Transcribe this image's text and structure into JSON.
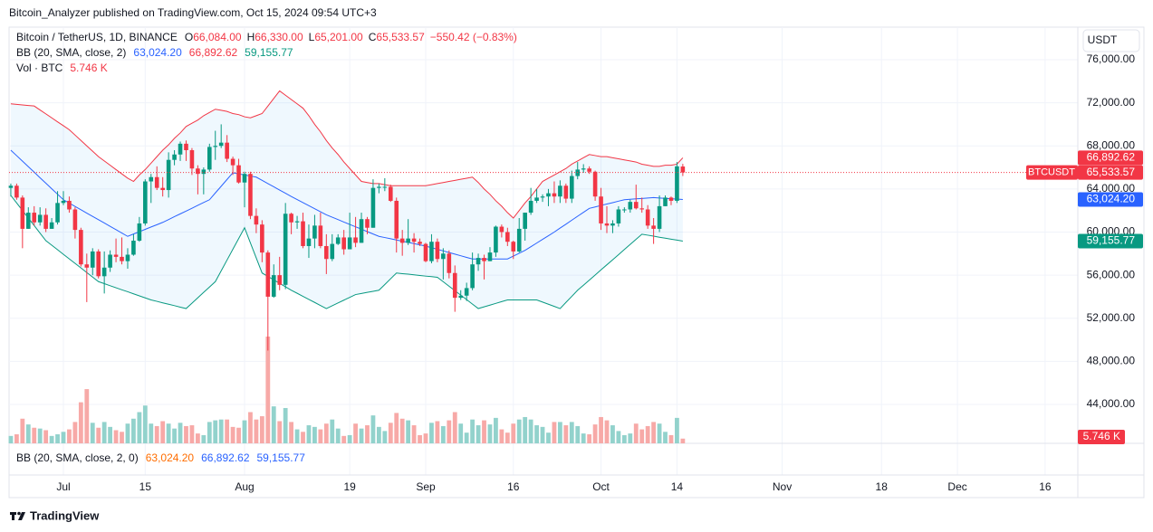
{
  "header": "Bitcoin_Analyzer published on TradingView.com, Oct 15, 2024 09:54 UTC+3",
  "footer": "TradingView",
  "chart_data": {
    "type": "candlestick",
    "title": "Bitcoin / TetherUS, 1D, BINANCE",
    "symbol": "BTCUSDT",
    "currency": "USDT",
    "ohlc_legend": [
      {
        "key": "O",
        "label": "66,084.00"
      },
      {
        "key": "H",
        "label": "66,330.00"
      },
      {
        "key": "L",
        "label": "65,201.00"
      },
      {
        "key": "C",
        "label": "65,533.57"
      }
    ],
    "change_label": "−550.42 (−0.83%)",
    "close_label": "65,533.57",
    "up_color": "#089981",
    "down_color": "#f23645",
    "open": [
      64100,
      64300,
      63200,
      60300,
      61800,
      60900,
      61600,
      60300,
      60900,
      62700,
      62900,
      62100,
      60200,
      57000,
      56700,
      58200,
      55900,
      56700,
      57900,
      57700,
      57300,
      57900,
      59200,
      60800,
      64700,
      65100,
      64100,
      63900,
      66700,
      67200,
      68200,
      67600,
      65900,
      65400,
      65800,
      67900,
      68000,
      68300,
      66800,
      66200,
      64600,
      65400,
      61500,
      60700,
      58100,
      54000,
      56000,
      55100,
      61700,
      60900,
      61000,
      58700,
      59400,
      60600,
      58700,
      57500,
      58900,
      59500,
      58400,
      59500,
      59000,
      61200,
      60400,
      64100,
      64200,
      64200,
      62900,
      59400,
      59000,
      59400,
      59100,
      58900,
      57300,
      59100,
      57500,
      58000,
      56200,
      53900,
      54100,
      54800,
      57000,
      57600,
      57300,
      58100,
      60500,
      60000,
      59100,
      58200,
      60300,
      61800,
      62900,
      63200,
      63300,
      63600,
      63300,
      64300,
      63100,
      65200,
      65800,
      65900,
      65600,
      63300,
      60800,
      60600,
      60800,
      62100,
      62100,
      62800,
      62200,
      62100,
      60600,
      60300,
      62400,
      63200,
      62900,
      66084
    ],
    "high": [
      64500,
      64500,
      63400,
      62300,
      62400,
      62300,
      62200,
      61300,
      63800,
      63800,
      63300,
      62300,
      60400,
      58000,
      58500,
      58400,
      58200,
      58300,
      59400,
      59500,
      58500,
      59800,
      61400,
      64900,
      65400,
      66100,
      65100,
      67400,
      67600,
      68400,
      68500,
      67800,
      66200,
      66000,
      68200,
      69400,
      70000,
      69000,
      67000,
      66800,
      65600,
      65600,
      62200,
      61100,
      58300,
      57000,
      57700,
      62700,
      61800,
      61500,
      61800,
      60700,
      61600,
      61800,
      59800,
      59800,
      59800,
      60200,
      61800,
      61400,
      61800,
      61400,
      64900,
      64500,
      65000,
      64400,
      63200,
      60200,
      61200,
      59900,
      59400,
      59000,
      59800,
      59400,
      58500,
      58300,
      56900,
      54600,
      55300,
      58100,
      58000,
      57900,
      58600,
      60600,
      60700,
      60400,
      59200,
      61300,
      61800,
      64100,
      64000,
      63500,
      64000,
      64700,
      64800,
      64500,
      65700,
      66500,
      66300,
      66100,
      65700,
      64100,
      62400,
      61100,
      62400,
      62300,
      63000,
      64400,
      63200,
      62500,
      61300,
      63400,
      63400,
      63300,
      66500,
      66330
    ],
    "low": [
      63300,
      63000,
      58500,
      60300,
      60600,
      60600,
      60000,
      60300,
      60700,
      62500,
      61800,
      59400,
      56800,
      53500,
      56000,
      55700,
      54300,
      56300,
      57200,
      57000,
      56600,
      57800,
      59100,
      60600,
      62700,
      63900,
      63300,
      63200,
      66200,
      66600,
      66600,
      65300,
      63500,
      63500,
      65600,
      66700,
      67800,
      66500,
      65300,
      64500,
      62300,
      61200,
      59900,
      57200,
      49000,
      53900,
      54600,
      54700,
      59800,
      60300,
      58500,
      57600,
      58500,
      58500,
      56100,
      57300,
      58800,
      57900,
      58400,
      58600,
      59000,
      59800,
      60400,
      63600,
      63800,
      62800,
      58100,
      57800,
      58800,
      58100,
      58700,
      57200,
      57100,
      57200,
      55600,
      55700,
      52600,
      53700,
      53600,
      54600,
      56400,
      55600,
      57300,
      57700,
      59500,
      58700,
      57500,
      58100,
      59200,
      61600,
      62700,
      62800,
      62400,
      62700,
      62700,
      62700,
      62700,
      64900,
      65500,
      65400,
      62900,
      60200,
      59900,
      59900,
      60500,
      61800,
      61800,
      62100,
      61800,
      60300,
      58900,
      60000,
      62400,
      62500,
      62700,
      65201
    ],
    "close": [
      64300,
      63200,
      60300,
      61800,
      60900,
      61600,
      60300,
      60900,
      62700,
      62900,
      62100,
      60200,
      57000,
      56700,
      58200,
      55900,
      56700,
      57900,
      57700,
      57300,
      57900,
      59200,
      60800,
      64700,
      65100,
      64100,
      63900,
      66700,
      67200,
      68200,
      67600,
      65900,
      65400,
      65800,
      67900,
      68000,
      68300,
      66800,
      66200,
      64600,
      65400,
      61500,
      60700,
      58100,
      54000,
      56000,
      55100,
      61700,
      60900,
      61000,
      58700,
      59400,
      60600,
      58700,
      57500,
      58900,
      59500,
      58400,
      59500,
      59000,
      61200,
      60400,
      64100,
      64200,
      64200,
      62900,
      59400,
      59000,
      59400,
      59100,
      58900,
      57300,
      59100,
      57500,
      58000,
      56200,
      53900,
      54100,
      54800,
      57000,
      57600,
      57300,
      58100,
      60500,
      60000,
      59100,
      58200,
      60300,
      61800,
      62900,
      63200,
      63300,
      63600,
      63300,
      64300,
      63100,
      65200,
      65800,
      65900,
      65600,
      63300,
      60800,
      60600,
      60800,
      62100,
      62100,
      62800,
      62200,
      62100,
      60600,
      60300,
      62400,
      63200,
      62900,
      66100,
      65533.57
    ],
    "volume": {
      "name": "Vol · BTC",
      "last_label": "5.746 K",
      "up_color": "#92d2cc",
      "down_color": "#f7a9a7",
      "values": [
        9000,
        11000,
        30000,
        23000,
        19000,
        18000,
        16000,
        9000,
        11000,
        14000,
        17000,
        26000,
        50000,
        66000,
        25000,
        19000,
        26000,
        20000,
        16000,
        14000,
        24000,
        30000,
        38000,
        46000,
        24000,
        21000,
        27000,
        24000,
        18000,
        25000,
        21000,
        22000,
        12000,
        10000,
        26000,
        28000,
        29000,
        29000,
        20000,
        19000,
        28000,
        38000,
        29000,
        33000,
        130000,
        45000,
        27000,
        43000,
        26000,
        17000,
        14000,
        22000,
        20000,
        17000,
        24000,
        29000,
        18000,
        9000,
        10000,
        24000,
        18000,
        22000,
        34000,
        20000,
        15000,
        25000,
        37000,
        30000,
        28000,
        22000,
        10000,
        12000,
        25000,
        27000,
        21000,
        28000,
        38000,
        24000,
        13000,
        29000,
        22000,
        28000,
        23000,
        31000,
        17000,
        13000,
        24000,
        29000,
        32000,
        29000,
        22000,
        20000,
        13000,
        26000,
        26000,
        22000,
        26000,
        21000,
        12000,
        11000,
        23000,
        32000,
        28000,
        22000,
        15000,
        10000,
        12000,
        24000,
        17000,
        21000,
        26000,
        24000,
        14000,
        10000,
        31000,
        5746
      ]
    },
    "indicator": {
      "name": "BB (20, SMA, close, 2)",
      "fill": "#2196f3",
      "series": [
        {
          "color": "#2962ff",
          "last_label": "63,024.20",
          "values": [
            67600,
            67090,
            66580,
            66070,
            65560,
            65040,
            64530,
            64020,
            63510,
            63000,
            62690,
            62380,
            62070,
            61760,
            61450,
            61150,
            60840,
            60530,
            60220,
            59910,
            59600,
            59820,
            60030,
            60250,
            60470,
            60680,
            60900,
            61160,
            61430,
            61690,
            61950,
            62210,
            62480,
            62740,
            63000,
            63630,
            64250,
            64880,
            65500,
            65400,
            65300,
            65200,
            65100,
            64800,
            64500,
            64200,
            63900,
            63600,
            63300,
            63020,
            62730,
            62450,
            62170,
            61880,
            61600,
            61380,
            61160,
            60930,
            60710,
            60490,
            60270,
            60040,
            59820,
            59600,
            59490,
            59380,
            59260,
            59150,
            59040,
            58930,
            58810,
            58700,
            58550,
            58400,
            58250,
            58100,
            57950,
            57800,
            57650,
            57500,
            57500,
            57500,
            57500,
            57500,
            57500,
            57500,
            57770,
            58030,
            58300,
            58640,
            58980,
            59320,
            59660,
            60000,
            60370,
            60730,
            61100,
            61470,
            61830,
            62200,
            62330,
            62470,
            62600,
            62730,
            62870,
            63000,
            63040,
            63080,
            63120,
            63160,
            63200,
            63160,
            63130,
            63090,
            63060,
            63024.2
          ]
        },
        {
          "color": "#f23645",
          "last_label": "66,892.62",
          "values": [
            71900,
            71850,
            71800,
            71750,
            71700,
            71330,
            70970,
            70600,
            70230,
            69870,
            69500,
            69000,
            68500,
            68000,
            67500,
            67000,
            66600,
            66200,
            65800,
            65400,
            65000,
            64700,
            65300,
            65800,
            66400,
            67000,
            67600,
            68100,
            68700,
            69200,
            69800,
            70100,
            70400,
            70800,
            71100,
            71400,
            71300,
            71200,
            71000,
            70900,
            70700,
            70600,
            70800,
            71000,
            71700,
            72400,
            73100,
            72700,
            72300,
            71900,
            71500,
            70800,
            70000,
            69300,
            68500,
            67800,
            67200,
            66500,
            65900,
            65300,
            64700,
            64600,
            64500,
            64500,
            64400,
            64300,
            64300,
            64300,
            64300,
            64300,
            64300,
            64300,
            64400,
            64500,
            64600,
            64700,
            64800,
            64900,
            65000,
            65100,
            64600,
            64000,
            63500,
            62900,
            62400,
            61800,
            61300,
            62000,
            62700,
            63300,
            64000,
            64700,
            65000,
            65300,
            65600,
            65900,
            66300,
            66600,
            66900,
            67200,
            67100,
            67000,
            67000,
            66900,
            66800,
            66700,
            66600,
            66500,
            66300,
            66200,
            66100,
            66100,
            66200,
            66200,
            66300,
            66892.62
          ]
        },
        {
          "color": "#089981",
          "last_label": "59,155.77",
          "values": [
            63400,
            62700,
            62000,
            61300,
            60600,
            59900,
            59200,
            58780,
            58360,
            57930,
            57510,
            57090,
            56670,
            56240,
            55820,
            55400,
            55210,
            55020,
            54830,
            54640,
            54460,
            54270,
            54080,
            53890,
            53700,
            53570,
            53430,
            53300,
            53170,
            53030,
            52900,
            53400,
            53900,
            54400,
            54900,
            55400,
            56400,
            57400,
            58400,
            59400,
            60400,
            59000,
            57600,
            56200,
            55880,
            55560,
            55240,
            54920,
            54600,
            54320,
            54030,
            53750,
            53470,
            53180,
            52900,
            53160,
            53420,
            53680,
            53940,
            54200,
            54300,
            54400,
            54500,
            54600,
            55130,
            55670,
            56200,
            56140,
            56090,
            56030,
            55970,
            55910,
            55860,
            55800,
            55390,
            54970,
            54560,
            54140,
            53730,
            53310,
            52900,
            53060,
            53220,
            53380,
            53540,
            53700,
            53700,
            53700,
            53700,
            53700,
            53700,
            53500,
            53300,
            53100,
            52900,
            53470,
            54030,
            54600,
            55070,
            55540,
            56010,
            56490,
            56960,
            57430,
            57900,
            58380,
            58850,
            59330,
            59800,
            59710,
            59620,
            59520,
            59430,
            59340,
            59250,
            59155.77
          ]
        }
      ]
    },
    "lower_pane": {
      "name": "BB (20, SMA, close, 2, 0)",
      "labels": [
        {
          "label": "63,024.20",
          "color": "#ff6d00"
        },
        {
          "label": "66,892.62",
          "color": "#2962ff"
        },
        {
          "label": "59,155.77",
          "color": "#2962ff"
        }
      ]
    },
    "xlim": [
      -0.3,
      182.6
    ],
    "xticks": [
      {
        "value": 9,
        "label": "Jul"
      },
      {
        "value": 23,
        "label": "15"
      },
      {
        "value": 40,
        "label": "Aug"
      },
      {
        "value": 58,
        "label": "19"
      },
      {
        "value": 71,
        "label": "Sep"
      },
      {
        "value": 86,
        "label": "16"
      },
      {
        "value": 101,
        "label": "Oct"
      },
      {
        "value": 114,
        "label": "14"
      },
      {
        "value": 132,
        "label": "Nov"
      },
      {
        "value": 149,
        "label": "18"
      },
      {
        "value": 162,
        "label": "Dec"
      },
      {
        "value": 177,
        "label": "16"
      }
    ],
    "ylim": [
      40390,
      79020
    ],
    "yticks": [
      {
        "value": 76000,
        "label": "76,000.00"
      },
      {
        "value": 72000,
        "label": "72,000.00"
      },
      {
        "value": 68000,
        "label": "68,000.00"
      },
      {
        "value": 64000,
        "label": "64,000.00"
      },
      {
        "value": 60000,
        "label": "60,000.00"
      },
      {
        "value": 56000,
        "label": "56,000.00"
      },
      {
        "value": 52000,
        "label": "52,000.00"
      },
      {
        "value": 48000,
        "label": "48,000.00"
      },
      {
        "value": 44000,
        "label": "44,000.00"
      }
    ],
    "grid": true
  }
}
